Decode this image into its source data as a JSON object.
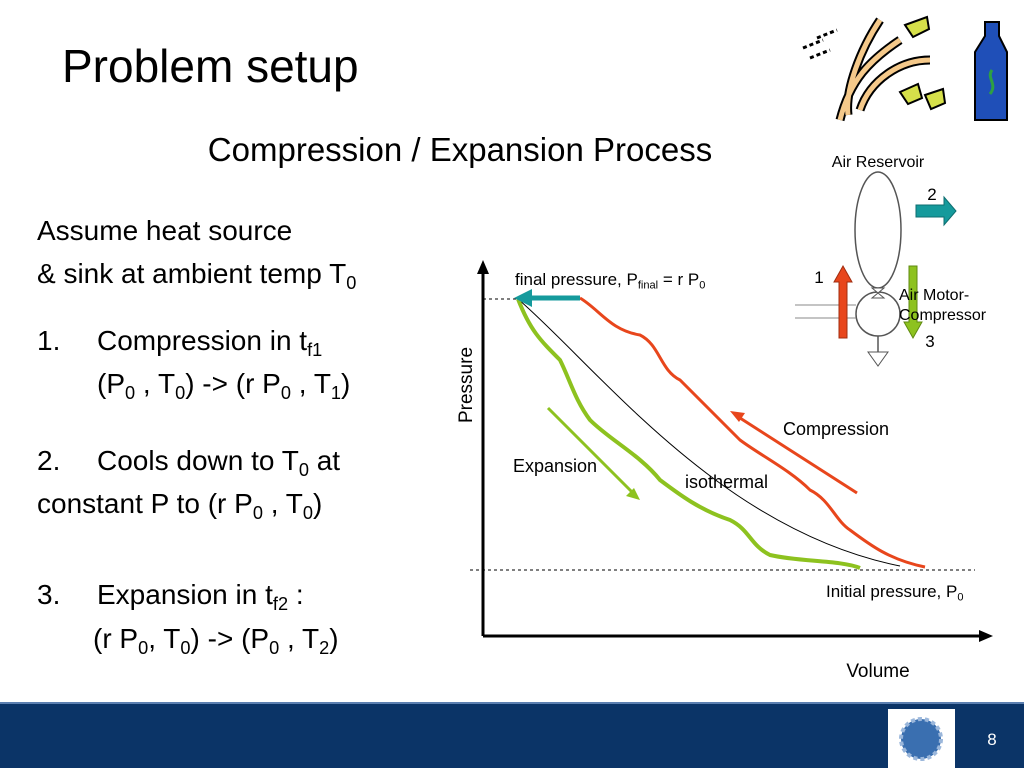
{
  "title": "Problem setup",
  "subtitle": "Compression / Expansion Process",
  "body": {
    "intro": [
      [
        "Assume heat source"
      ],
      [
        "& sink at ambient temp T",
        "0"
      ]
    ],
    "items": [
      {
        "num": "1.",
        "lines": [
          [
            "Compression in t",
            "f1"
          ],
          [
            "(P",
            "0",
            " , T",
            "0",
            ") -> (r P",
            "0",
            " , T",
            "1",
            ")"
          ]
        ]
      },
      {
        "num": "2.",
        "lines": [
          [
            "Cools down to T",
            "0",
            " at"
          ],
          [
            "constant P to (r P",
            "0",
            " , T",
            "0",
            ")"
          ]
        ]
      },
      {
        "num": "3.",
        "lines": [
          [
            "Expansion in t",
            "f2",
            " :"
          ],
          [
            "(r P",
            "0",
            ", T",
            "0",
            ") -> (P",
            "0",
            " , T",
            "2",
            ")"
          ]
        ]
      }
    ]
  },
  "diagram": {
    "final_pressure": [
      "final pressure, P",
      "final",
      " = r P",
      "0"
    ],
    "initial_pressure": [
      "Initial pressure, P",
      "0"
    ],
    "compression": "Compression",
    "expansion": "Expansion",
    "isothermal": "isothermal",
    "y_axis": "Pressure",
    "x_axis": "Volume"
  },
  "reservoir": {
    "title": "Air Reservoir",
    "label_2": "2",
    "label_1": "1",
    "motor": [
      "Air Motor-",
      "Compressor"
    ],
    "label_3": "3"
  },
  "footer": {
    "page": "8"
  }
}
